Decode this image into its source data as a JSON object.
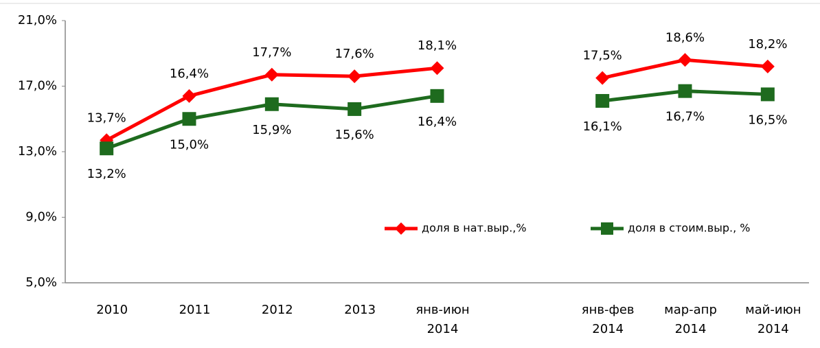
{
  "chart_data": {
    "type": "line",
    "categories": [
      "2010",
      "2011",
      "2012",
      "2013",
      "янв-июн 2014",
      null,
      "янв-фев 2014",
      "мар-апр 2014",
      "май-июн 2014"
    ],
    "series": [
      {
        "name": "доля в нат.выр.,%",
        "color": "#ff0000",
        "marker": "diamond",
        "values": [
          13.7,
          16.4,
          17.7,
          17.6,
          18.1,
          null,
          17.5,
          18.6,
          18.2
        ],
        "value_labels": [
          "13,7%",
          "16,4%",
          "17,7%",
          "17,6%",
          "18,1%",
          null,
          "17,5%",
          "18,6%",
          "18,2%"
        ]
      },
      {
        "name": "доля в стоим.выр., %",
        "color": "#1e6b1e",
        "marker": "square",
        "values": [
          13.2,
          15.0,
          15.9,
          15.6,
          16.4,
          null,
          16.1,
          16.7,
          16.5
        ],
        "value_labels": [
          "13,2%",
          "15,0%",
          "15,9%",
          "15,6%",
          "16,4%",
          null,
          "16,1%",
          "16,7%",
          "16,5%"
        ]
      }
    ],
    "ylim": [
      5,
      21
    ],
    "yticks": [
      {
        "value": 5,
        "label": "5,0%"
      },
      {
        "value": 9,
        "label": "9,0%"
      },
      {
        "value": 13,
        "label": "13,0%"
      },
      {
        "value": 17,
        "label": "17,0%"
      },
      {
        "value": 21,
        "label": "21,0%"
      }
    ],
    "grid": false
  }
}
